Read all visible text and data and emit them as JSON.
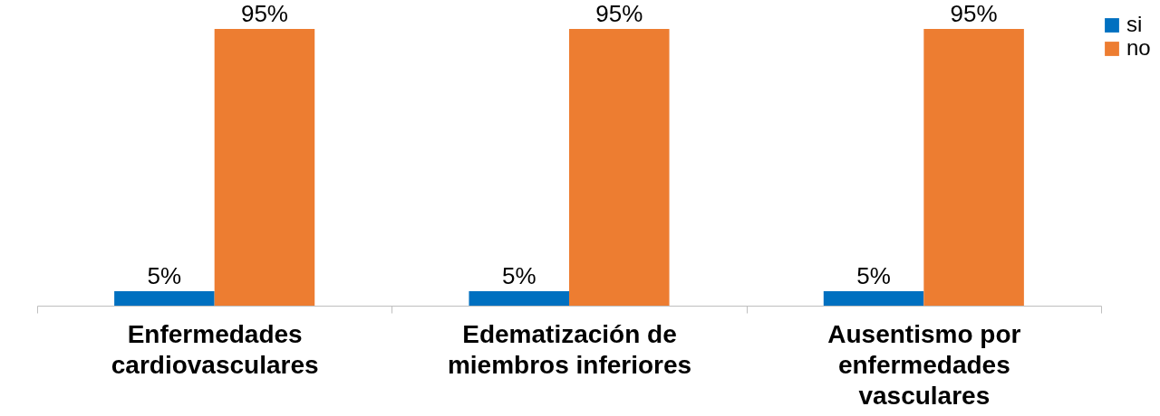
{
  "chart_data": {
    "type": "bar",
    "categories": [
      "Enfermedades cardiovasculares",
      "Edematización de miembros inferiores",
      "Ausentismo por enfermedades vasculares"
    ],
    "series": [
      {
        "name": "si",
        "color": "#0070c0",
        "values": [
          5,
          5,
          5
        ],
        "value_labels": [
          "5%",
          "5%",
          "5%"
        ]
      },
      {
        "name": "no",
        "color": "#ed7d31",
        "values": [
          95,
          95,
          95
        ],
        "value_labels": [
          "95%",
          "95%",
          "95%"
        ]
      }
    ],
    "legend": "right",
    "grid": false
  }
}
